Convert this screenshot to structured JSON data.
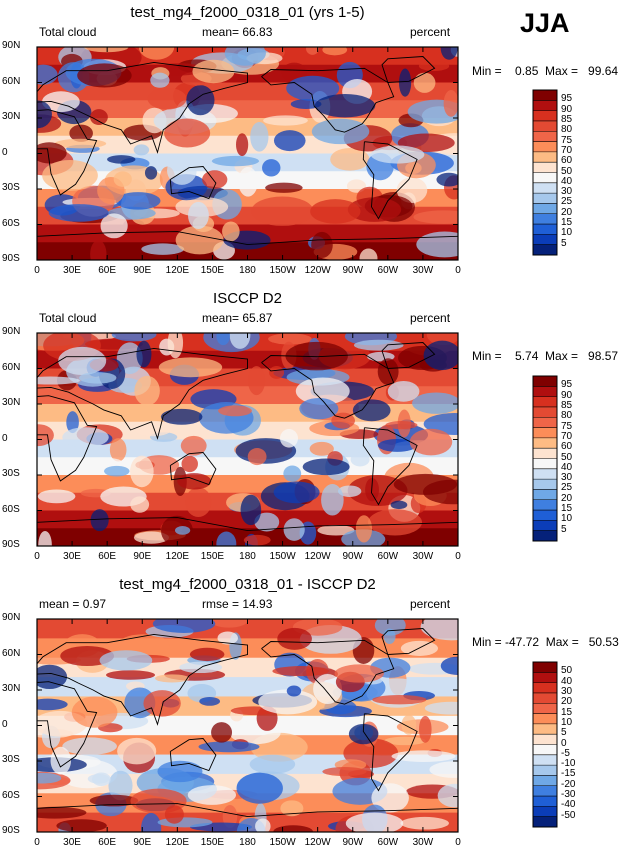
{
  "season": "JJA",
  "panels": [
    {
      "title": "test_mg4_f2000_0318_01 (yrs 1-5)",
      "left_label": "Total cloud",
      "mid_label": "mean=   66.83",
      "units": "percent",
      "minmax": "Min =    0.85  Max =   99.64",
      "colorbar": {
        "labels": [
          "95",
          "90",
          "85",
          "80",
          "75",
          "70",
          "60",
          "50",
          "40",
          "30",
          "25",
          "20",
          "15",
          "10",
          "5"
        ],
        "colors": [
          "#7f0000",
          "#b00f0f",
          "#d7301f",
          "#e34a33",
          "#ef6548",
          "#fc8d59",
          "#fdbb84",
          "#fde3d0",
          "#f7f7f7",
          "#cfe0f3",
          "#a6c8ec",
          "#6fa8e6",
          "#3f7fe0",
          "#1f5fd6",
          "#0b3db8",
          "#05217a"
        ]
      },
      "mean_value": 66.83
    },
    {
      "title": "ISCCP D2",
      "left_label": "Total cloud",
      "mid_label": "mean=   65.87",
      "units": "percent",
      "minmax": "Min =    5.74  Max =   98.57",
      "colorbar": {
        "labels": [
          "95",
          "90",
          "85",
          "80",
          "75",
          "70",
          "60",
          "50",
          "40",
          "30",
          "25",
          "20",
          "15",
          "10",
          "5"
        ],
        "colors": [
          "#7f0000",
          "#b00f0f",
          "#d7301f",
          "#e34a33",
          "#ef6548",
          "#fc8d59",
          "#fdbb84",
          "#fde3d0",
          "#f7f7f7",
          "#cfe0f3",
          "#a6c8ec",
          "#6fa8e6",
          "#3f7fe0",
          "#1f5fd6",
          "#0b3db8",
          "#05217a"
        ]
      },
      "mean_value": 65.87
    },
    {
      "title": "test_mg4_f2000_0318_01 - ISCCP D2",
      "left_label": "mean =    0.97",
      "mid_label": "rmse =   14.93",
      "units": "percent",
      "minmax": "Min = -47.72  Max =   50.53",
      "colorbar": {
        "labels": [
          "50",
          "40",
          "30",
          "20",
          "15",
          "10",
          "5",
          "0",
          "-5",
          "-10",
          "-15",
          "-20",
          "-30",
          "-40",
          "-50"
        ],
        "colors": [
          "#7f0000",
          "#b00f0f",
          "#d7301f",
          "#e34a33",
          "#ef6548",
          "#fc8d59",
          "#fdbb84",
          "#fde3d0",
          "#f7f7f7",
          "#cfe0f3",
          "#a6c8ec",
          "#6fa8e6",
          "#3f7fe0",
          "#1f5fd6",
          "#0b3db8",
          "#05217a"
        ]
      },
      "mean_value": 0.97
    }
  ],
  "lat_ticks": [
    "90N",
    "60N",
    "30N",
    "0",
    "30S",
    "60S",
    "90S"
  ],
  "lon_ticks": [
    "0",
    "30E",
    "60E",
    "90E",
    "120E",
    "150E",
    "180",
    "150W",
    "120W",
    "90W",
    "60W",
    "30W",
    "0"
  ]
}
